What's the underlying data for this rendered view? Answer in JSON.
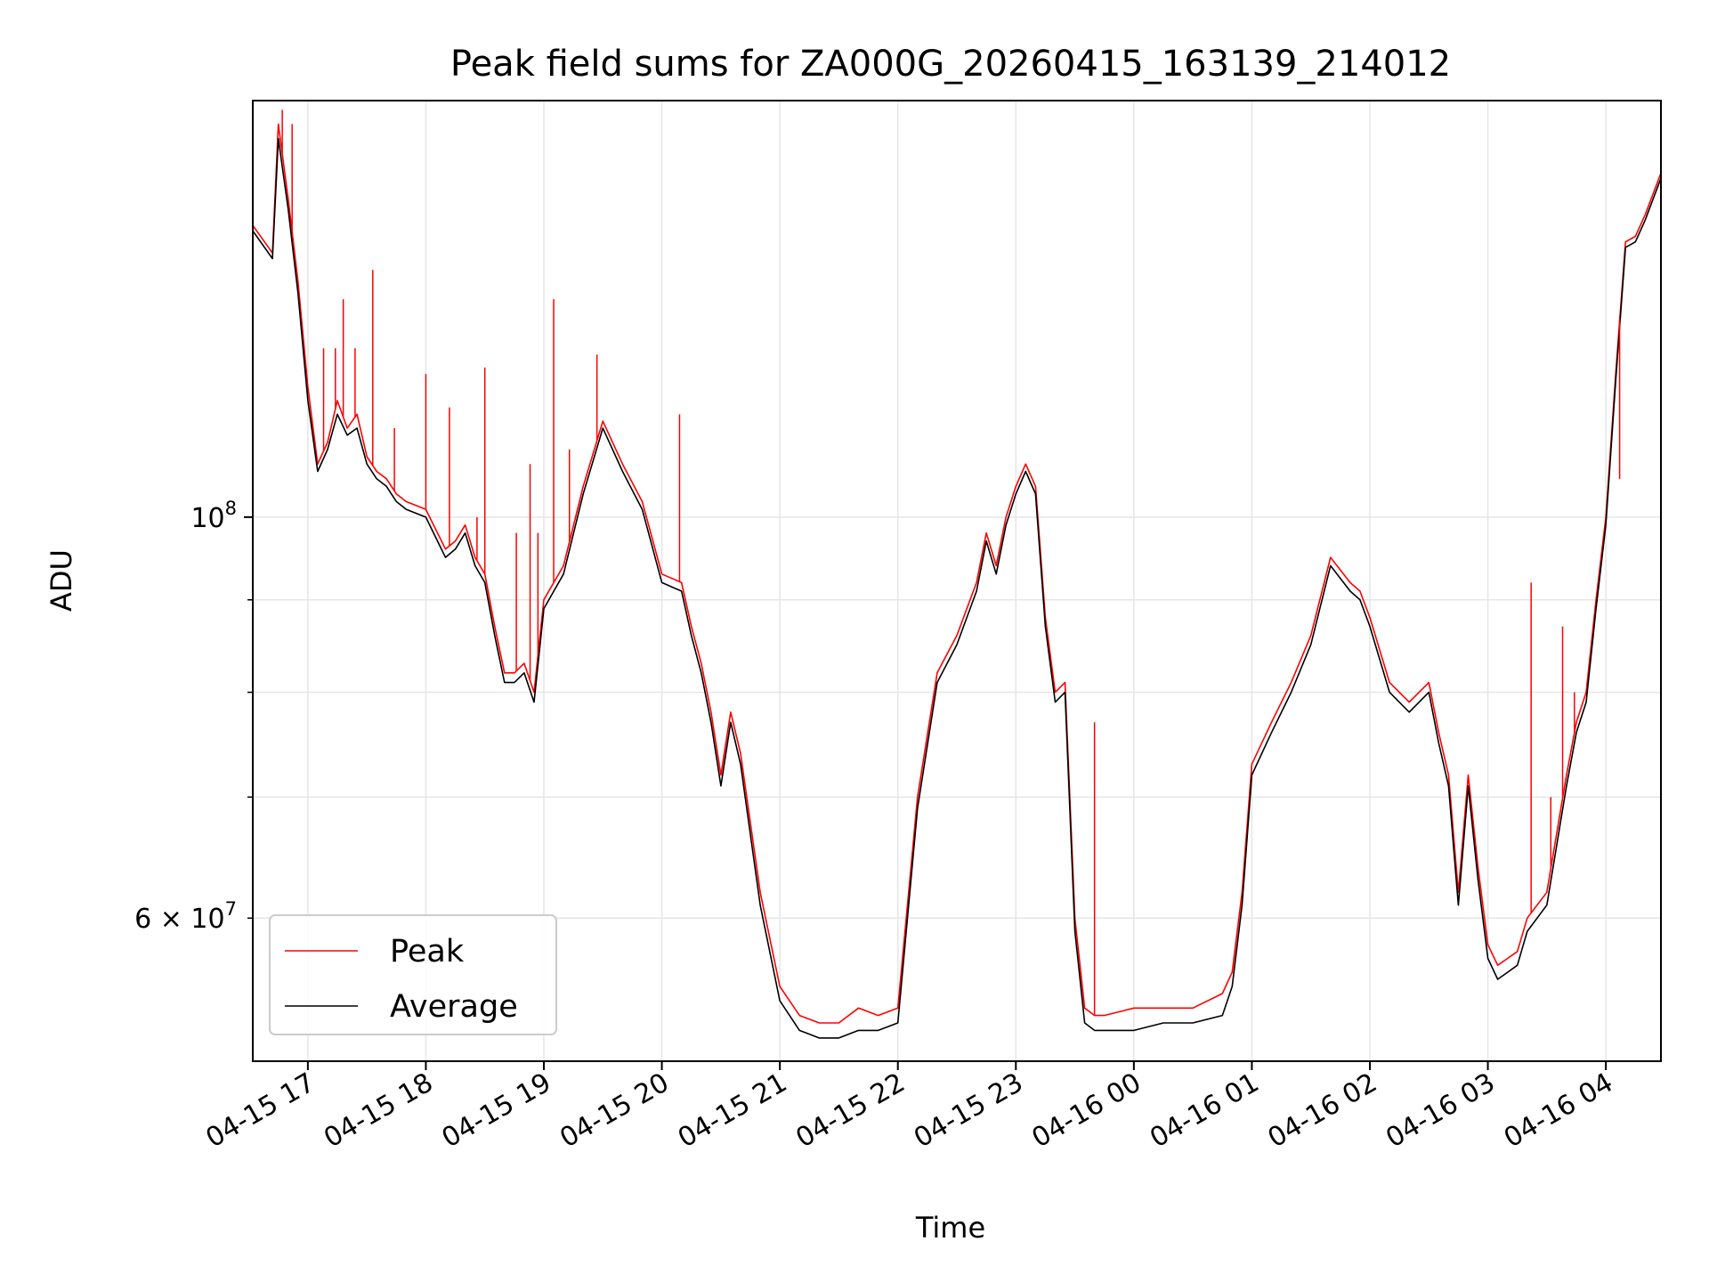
{
  "chart_data": {
    "type": "line",
    "title": "Peak field sums for ZA000G_20260415_163139_214012",
    "xlabel": "Time",
    "ylabel": "ADU",
    "yscale": "log",
    "xlim": [
      "2026-04-15 16:32",
      "2026-04-16 04:28"
    ],
    "ylim": [
      50000000,
      170000000
    ],
    "x_ticks": [
      "04-15 17",
      "04-15 18",
      "04-15 19",
      "04-15 20",
      "04-15 21",
      "04-15 22",
      "04-15 23",
      "04-16 00",
      "04-16 01",
      "04-16 02",
      "04-16 03",
      "04-16 04"
    ],
    "y_major_ticks": [
      {
        "value": 100000000,
        "label": "10",
        "exp": "8"
      }
    ],
    "y_minor_ticks": [
      {
        "value": 60000000,
        "label": "6 × 10",
        "exp": "7"
      },
      {
        "value": 70000000
      },
      {
        "value": 80000000
      },
      {
        "value": 90000000
      }
    ],
    "grid": true,
    "legend_position": "lower-left",
    "colors": {
      "peak": "#ff0000",
      "average": "#000000"
    },
    "x": [
      "2026-04-15 16:32",
      "2026-04-15 16:42",
      "2026-04-15 16:45",
      "2026-04-15 16:50",
      "2026-04-15 16:55",
      "2026-04-15 17:00",
      "2026-04-15 17:05",
      "2026-04-15 17:10",
      "2026-04-15 17:15",
      "2026-04-15 17:20",
      "2026-04-15 17:25",
      "2026-04-15 17:30",
      "2026-04-15 17:35",
      "2026-04-15 17:40",
      "2026-04-15 17:45",
      "2026-04-15 17:50",
      "2026-04-15 18:00",
      "2026-04-15 18:10",
      "2026-04-15 18:15",
      "2026-04-15 18:20",
      "2026-04-15 18:25",
      "2026-04-15 18:30",
      "2026-04-15 18:35",
      "2026-04-15 18:40",
      "2026-04-15 18:45",
      "2026-04-15 18:50",
      "2026-04-15 18:55",
      "2026-04-15 19:00",
      "2026-04-15 19:10",
      "2026-04-15 19:20",
      "2026-04-15 19:30",
      "2026-04-15 19:40",
      "2026-04-15 19:50",
      "2026-04-15 20:00",
      "2026-04-15 20:10",
      "2026-04-15 20:15",
      "2026-04-15 20:20",
      "2026-04-15 20:25",
      "2026-04-15 20:30",
      "2026-04-15 20:35",
      "2026-04-15 20:40",
      "2026-04-15 20:50",
      "2026-04-15 21:00",
      "2026-04-15 21:10",
      "2026-04-15 21:20",
      "2026-04-15 21:30",
      "2026-04-15 21:40",
      "2026-04-15 21:50",
      "2026-04-15 22:00",
      "2026-04-15 22:10",
      "2026-04-15 22:20",
      "2026-04-15 22:30",
      "2026-04-15 22:40",
      "2026-04-15 22:45",
      "2026-04-15 22:50",
      "2026-04-15 22:55",
      "2026-04-15 23:00",
      "2026-04-15 23:05",
      "2026-04-15 23:10",
      "2026-04-15 23:15",
      "2026-04-15 23:20",
      "2026-04-15 23:25",
      "2026-04-15 23:30",
      "2026-04-15 23:35",
      "2026-04-15 23:40",
      "2026-04-15 23:45",
      "2026-04-16 00:00",
      "2026-04-16 00:15",
      "2026-04-16 00:30",
      "2026-04-16 00:45",
      "2026-04-16 00:50",
      "2026-04-16 00:55",
      "2026-04-16 01:00",
      "2026-04-16 01:10",
      "2026-04-16 01:20",
      "2026-04-16 01:30",
      "2026-04-16 01:40",
      "2026-04-16 01:50",
      "2026-04-16 01:55",
      "2026-04-16 02:00",
      "2026-04-16 02:10",
      "2026-04-16 02:20",
      "2026-04-16 02:30",
      "2026-04-16 02:35",
      "2026-04-16 02:40",
      "2026-04-16 02:45",
      "2026-04-16 02:50",
      "2026-04-16 02:55",
      "2026-04-16 03:00",
      "2026-04-16 03:05",
      "2026-04-16 03:10",
      "2026-04-16 03:15",
      "2026-04-16 03:20",
      "2026-04-16 03:30",
      "2026-04-16 03:40",
      "2026-04-16 03:45",
      "2026-04-16 03:50",
      "2026-04-16 03:55",
      "2026-04-16 04:00",
      "2026-04-16 04:05",
      "2026-04-16 04:10",
      "2026-04-16 04:15",
      "2026-04-16 04:20",
      "2026-04-16 04:28"
    ],
    "series": [
      {
        "name": "Peak",
        "values": [
          145000000,
          140000000,
          165000000,
          150000000,
          135000000,
          118000000,
          107000000,
          110000000,
          116000000,
          112000000,
          114000000,
          108000000,
          106000000,
          105000000,
          103000000,
          102000000,
          101000000,
          96000000,
          97000000,
          99000000,
          95000000,
          93000000,
          87000000,
          82000000,
          82000000,
          83000000,
          80000000,
          90000000,
          94000000,
          104000000,
          113000000,
          107000000,
          102000000,
          93000000,
          92000000,
          87000000,
          83000000,
          78000000,
          72000000,
          78000000,
          74000000,
          62000000,
          55000000,
          53000000,
          52500000,
          52500000,
          53500000,
          53000000,
          53500000,
          70000000,
          82000000,
          86000000,
          92000000,
          98000000,
          94000000,
          100000000,
          104000000,
          107000000,
          104000000,
          88000000,
          80000000,
          81000000,
          60000000,
          53500000,
          53000000,
          53000000,
          53500000,
          53500000,
          53500000,
          54500000,
          56000000,
          62000000,
          73000000,
          77000000,
          81000000,
          86000000,
          95000000,
          92000000,
          91000000,
          88000000,
          81000000,
          79000000,
          81000000,
          76000000,
          72000000,
          62000000,
          72000000,
          64000000,
          58000000,
          56500000,
          57000000,
          57500000,
          60000000,
          62000000,
          72000000,
          77000000,
          80000000,
          90000000,
          100000000,
          120000000,
          142000000,
          143000000,
          147000000,
          155000000
        ]
      },
      {
        "name": "Average",
        "values": [
          144000000,
          139000000,
          162000000,
          148000000,
          133000000,
          116000000,
          106000000,
          109000000,
          114000000,
          111000000,
          112000000,
          107000000,
          105000000,
          104000000,
          102000000,
          101000000,
          100000000,
          95000000,
          96000000,
          98000000,
          94000000,
          92000000,
          86000000,
          81000000,
          81000000,
          82000000,
          79000000,
          89000000,
          93000000,
          103000000,
          112000000,
          106000000,
          101000000,
          92000000,
          91000000,
          86000000,
          82000000,
          77000000,
          71000000,
          77000000,
          73000000,
          61000000,
          54000000,
          52000000,
          51500000,
          51500000,
          52000000,
          52000000,
          52500000,
          69000000,
          81000000,
          85000000,
          91000000,
          97000000,
          93000000,
          99000000,
          103000000,
          106000000,
          103000000,
          87000000,
          79000000,
          80000000,
          59000000,
          52500000,
          52000000,
          52000000,
          52000000,
          52500000,
          52500000,
          53000000,
          55000000,
          61000000,
          72000000,
          76000000,
          80000000,
          85000000,
          94000000,
          91000000,
          90000000,
          87000000,
          80000000,
          78000000,
          80000000,
          75000000,
          71000000,
          61000000,
          71000000,
          63000000,
          57000000,
          55500000,
          56000000,
          56500000,
          59000000,
          61000000,
          71000000,
          76000000,
          79000000,
          89000000,
          99000000,
          119000000,
          141000000,
          142000000,
          146000000,
          154000000
        ]
      }
    ],
    "peak_spikes": [
      {
        "x": "2026-04-15 16:47",
        "y": 168000000
      },
      {
        "x": "2026-04-15 16:52",
        "y": 165000000
      },
      {
        "x": "2026-04-15 17:08",
        "y": 124000000
      },
      {
        "x": "2026-04-15 17:14",
        "y": 124000000
      },
      {
        "x": "2026-04-15 17:18",
        "y": 132000000
      },
      {
        "x": "2026-04-15 17:24",
        "y": 124000000
      },
      {
        "x": "2026-04-15 17:33",
        "y": 137000000
      },
      {
        "x": "2026-04-15 17:44",
        "y": 112000000
      },
      {
        "x": "2026-04-15 18:00",
        "y": 120000000
      },
      {
        "x": "2026-04-15 18:12",
        "y": 115000000
      },
      {
        "x": "2026-04-15 18:26",
        "y": 100000000
      },
      {
        "x": "2026-04-15 18:30",
        "y": 121000000
      },
      {
        "x": "2026-04-15 18:46",
        "y": 98000000
      },
      {
        "x": "2026-04-15 18:53",
        "y": 107000000
      },
      {
        "x": "2026-04-15 18:57",
        "y": 98000000
      },
      {
        "x": "2026-04-15 19:05",
        "y": 132000000
      },
      {
        "x": "2026-04-15 19:13",
        "y": 109000000
      },
      {
        "x": "2026-04-15 19:27",
        "y": 123000000
      },
      {
        "x": "2026-04-15 20:09",
        "y": 114000000
      },
      {
        "x": "2026-04-15 23:40",
        "y": 77000000
      },
      {
        "x": "2026-04-16 03:22",
        "y": 92000000
      },
      {
        "x": "2026-04-16 03:32",
        "y": 70000000
      },
      {
        "x": "2026-04-16 03:38",
        "y": 87000000
      },
      {
        "x": "2026-04-16 03:44",
        "y": 80000000
      },
      {
        "x": "2026-04-16 04:07",
        "y": 105000000
      }
    ],
    "legend": [
      {
        "label": "Peak",
        "color": "#ff0000"
      },
      {
        "label": "Average",
        "color": "#000000"
      }
    ]
  }
}
